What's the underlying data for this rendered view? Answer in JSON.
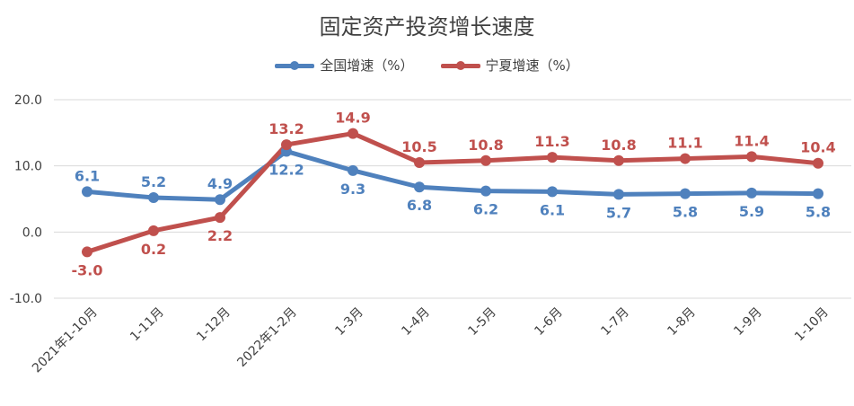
{
  "chart_data": {
    "type": "line",
    "title": "固定资产投资增长速度",
    "categories": [
      "2021年1-10月",
      "1-11月",
      "1-12月",
      "2022年1-2月",
      "1-3月",
      "1-4月",
      "1-5月",
      "1-6月",
      "1-7月",
      "1-8月",
      "1-9月",
      "1-10月"
    ],
    "series": [
      {
        "name": "全国增速（%）",
        "color": "#4f81bd",
        "values": [
          6.1,
          5.2,
          4.9,
          12.2,
          9.3,
          6.8,
          6.2,
          6.1,
          5.7,
          5.8,
          5.9,
          5.8
        ]
      },
      {
        "name": "宁夏增速（%）",
        "color": "#c0504d",
        "values": [
          -3.0,
          0.2,
          2.2,
          13.2,
          14.9,
          10.5,
          10.8,
          11.3,
          10.8,
          11.1,
          11.4,
          10.4
        ]
      }
    ],
    "yticks": [
      "20.0",
      "10.0",
      "0.0",
      "-10.0"
    ],
    "ylim": [
      -10,
      20
    ],
    "grid": true,
    "legend": "top-center"
  }
}
